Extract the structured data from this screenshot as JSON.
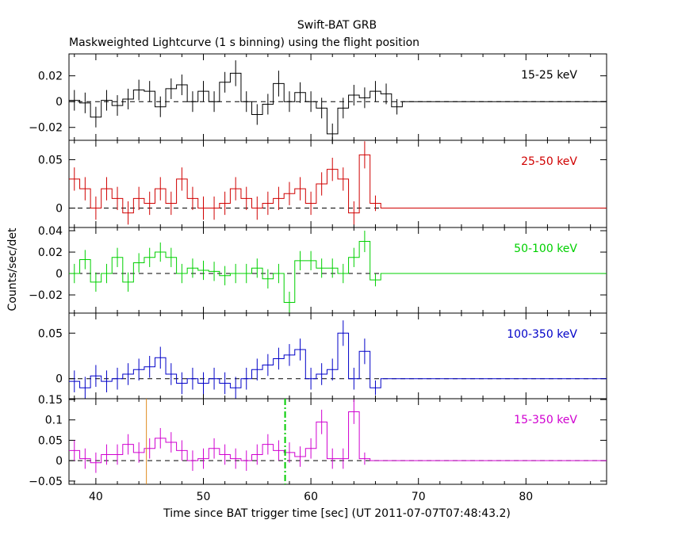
{
  "title_line1": "Swift-BAT GRB",
  "title_line2": "Maskweighted Lightcurve (1 s binning) using the flight position",
  "xlabel": "Time since BAT trigger time [sec] (UT 2011-07-07T07:48:43.2)",
  "ylabel": "Counts/sec/det",
  "colors": {
    "axis": "#000000",
    "orange": "#e08a1e",
    "green_dash": "#00cc00"
  },
  "chart_data": {
    "type": "line",
    "step": true,
    "xlim": [
      37.5,
      87.5
    ],
    "x_ticks": [
      40,
      50,
      60,
      70,
      80
    ],
    "x_start": 37.5,
    "x_bin": 1,
    "data_end": 63.5,
    "markers": [
      {
        "x": 44.7,
        "color": "#e08a1e",
        "style": "solid",
        "panel": 4
      },
      {
        "x": 57.6,
        "color": "#00cc00",
        "style": "dashdot",
        "panel": 4
      }
    ],
    "panels": [
      {
        "label": "15-25 keV",
        "color": "#000000",
        "ylim": [
          -0.03,
          0.037
        ],
        "y_ticks": [
          0.02,
          0,
          -0.02
        ],
        "y_tick_labels": [
          "0.02",
          "0",
          "−0.02"
        ],
        "values": [
          0.001,
          -0.001,
          -0.012,
          0.001,
          -0.003,
          0.002,
          0.009,
          0.008,
          -0.004,
          0.01,
          0.013,
          0.0,
          0.008,
          0.0,
          0.015,
          0.022,
          0.0,
          -0.01,
          -0.002,
          0.014,
          0.0,
          0.007,
          0.0,
          -0.005,
          -0.025,
          -0.005,
          0.005,
          0.003,
          0.008,
          0.006,
          -0.004
        ],
        "errors": [
          0.008,
          0.008,
          0.008,
          0.008,
          0.008,
          0.008,
          0.008,
          0.008,
          0.008,
          0.008,
          0.008,
          0.008,
          0.008,
          0.008,
          0.008,
          0.01,
          0.008,
          0.008,
          0.008,
          0.01,
          0.008,
          0.008,
          0.008,
          0.008,
          0.008,
          0.008,
          0.008,
          0.008,
          0.008,
          0.008,
          0.006
        ]
      },
      {
        "label": "25-50 keV",
        "color": "#d00000",
        "ylim": [
          -0.02,
          0.07
        ],
        "y_ticks": [
          0.05,
          0
        ],
        "y_tick_labels": [
          "0.05",
          "0"
        ],
        "values": [
          0.03,
          0.02,
          0.0,
          0.02,
          0.01,
          -0.005,
          0.01,
          0.005,
          0.02,
          0.005,
          0.03,
          0.01,
          0.0,
          0.0,
          0.005,
          0.02,
          0.01,
          0.0,
          0.005,
          0.01,
          0.015,
          0.02,
          0.005,
          0.025,
          0.04,
          0.03,
          -0.005,
          0.055,
          0.005
        ],
        "errors": [
          0.012,
          0.012,
          0.012,
          0.012,
          0.012,
          0.012,
          0.012,
          0.012,
          0.012,
          0.012,
          0.012,
          0.012,
          0.012,
          0.012,
          0.012,
          0.012,
          0.012,
          0.012,
          0.012,
          0.012,
          0.012,
          0.012,
          0.012,
          0.012,
          0.012,
          0.012,
          0.012,
          0.014,
          0.008
        ]
      },
      {
        "label": "50-100 keV",
        "color": "#00d000",
        "ylim": [
          -0.037,
          0.043
        ],
        "y_ticks": [
          0.04,
          0.02,
          0,
          -0.02
        ],
        "y_tick_labels": [
          "0.04",
          "0.02",
          "0",
          "−0.02"
        ],
        "values": [
          0.0,
          0.013,
          -0.008,
          0.0,
          0.015,
          -0.008,
          0.01,
          0.015,
          0.02,
          0.015,
          0.0,
          0.005,
          0.003,
          0.002,
          -0.002,
          0.0,
          0.0,
          0.005,
          -0.005,
          0.0,
          -0.027,
          0.012,
          0.012,
          0.005,
          0.005,
          0.0,
          0.015,
          0.03,
          -0.006
        ],
        "errors": [
          0.009,
          0.009,
          0.009,
          0.009,
          0.009,
          0.009,
          0.009,
          0.009,
          0.009,
          0.009,
          0.009,
          0.009,
          0.009,
          0.009,
          0.009,
          0.009,
          0.009,
          0.009,
          0.009,
          0.009,
          0.01,
          0.009,
          0.009,
          0.009,
          0.009,
          0.009,
          0.009,
          0.01,
          0.006
        ]
      },
      {
        "label": "100-350 keV",
        "color": "#0000c8",
        "ylim": [
          -0.022,
          0.072
        ],
        "y_ticks": [
          0.05,
          0
        ],
        "y_tick_labels": [
          "0.05",
          "0"
        ],
        "values": [
          -0.003,
          -0.01,
          0.003,
          -0.003,
          0.0,
          0.005,
          0.01,
          0.013,
          0.023,
          0.005,
          -0.005,
          0.0,
          -0.005,
          0.0,
          -0.005,
          -0.01,
          0.0,
          0.01,
          0.015,
          0.022,
          0.026,
          0.032,
          0.0,
          0.005,
          0.01,
          0.05,
          0.0,
          0.03,
          -0.01
        ],
        "errors": [
          0.012,
          0.012,
          0.012,
          0.012,
          0.012,
          0.012,
          0.012,
          0.012,
          0.012,
          0.012,
          0.012,
          0.012,
          0.012,
          0.012,
          0.012,
          0.012,
          0.012,
          0.012,
          0.012,
          0.012,
          0.012,
          0.012,
          0.012,
          0.012,
          0.012,
          0.014,
          0.012,
          0.014,
          0.008
        ]
      },
      {
        "label": "15-350 keV",
        "color": "#d000d0",
        "ylim": [
          -0.058,
          0.152
        ],
        "y_ticks": [
          0.15,
          0.1,
          0.05,
          0,
          -0.05
        ],
        "y_tick_labels": [
          "0.15",
          "0.1",
          "0.05",
          "0",
          "−0.05"
        ],
        "values": [
          0.025,
          0.005,
          -0.005,
          0.015,
          0.015,
          0.04,
          0.02,
          0.03,
          0.055,
          0.045,
          0.025,
          0.0,
          0.005,
          0.03,
          0.015,
          0.005,
          0.0,
          0.015,
          0.04,
          0.025,
          0.02,
          0.01,
          0.03,
          0.095,
          0.005,
          0.005,
          0.12,
          0.005
        ],
        "errors": [
          0.025,
          0.025,
          0.025,
          0.025,
          0.025,
          0.025,
          0.025,
          0.025,
          0.025,
          0.025,
          0.025,
          0.025,
          0.025,
          0.025,
          0.025,
          0.025,
          0.025,
          0.025,
          0.025,
          0.025,
          0.025,
          0.025,
          0.025,
          0.03,
          0.025,
          0.025,
          0.03,
          0.015
        ]
      }
    ]
  }
}
